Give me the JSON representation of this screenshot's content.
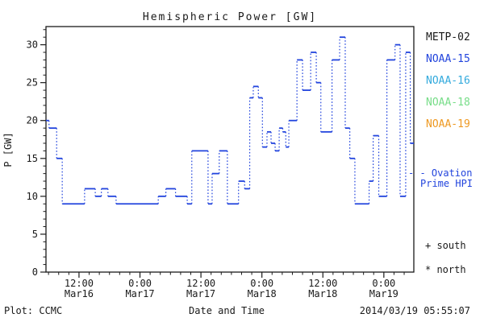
{
  "header": {
    "title": "Hemispheric Power [GW]"
  },
  "footer": {
    "plot_source": "Plot: CCMC",
    "timestamp": "2014/03/19 05:55:07"
  },
  "colors": {
    "axis": "#1a1a1a",
    "curve": "#2244dd",
    "metp02": "#1a1a1a",
    "noaa15": "#2244dd",
    "noaa16": "#33aadd",
    "noaa18": "#77dd88",
    "noaa19": "#ee9922"
  },
  "legend": {
    "satellites": [
      {
        "label": "METP-02",
        "color_key": "metp02"
      },
      {
        "label": "NOAA-15",
        "color_key": "noaa15"
      },
      {
        "label": "NOAA-16",
        "color_key": "noaa16"
      },
      {
        "label": "NOAA-18",
        "color_key": "noaa18"
      },
      {
        "label": "NOAA-19",
        "color_key": "noaa19"
      }
    ],
    "ovation_line1": "- - Ovation",
    "ovation_line2": "Prime HPI",
    "south_marker": "+ south",
    "north_marker": "* north"
  },
  "chart_data": {
    "type": "line",
    "style": "step-post; solid horizontal segments with dotted vertical connectors",
    "title": "Hemispheric Power [GW]",
    "xlabel": "Date and Time",
    "ylabel": "P [GW]",
    "ylim": [
      0,
      32.4
    ],
    "y_major_ticks": [
      0,
      5,
      10,
      15,
      20,
      25,
      30
    ],
    "y_minor_step": 1,
    "x_unit": "hours since 2014-03-16 00:00",
    "xlim_hours": [
      5.5,
      77.9
    ],
    "x_minor_step_hours": 2,
    "x_major_ticks": [
      {
        "hour": 12,
        "time": "12:00",
        "date": "Mar16"
      },
      {
        "hour": 24,
        "time": "0:00",
        "date": "Mar17"
      },
      {
        "hour": 36,
        "time": "12:00",
        "date": "Mar17"
      },
      {
        "hour": 48,
        "time": "0:00",
        "date": "Mar18"
      },
      {
        "hour": 60,
        "time": "12:00",
        "date": "Mar18"
      },
      {
        "hour": 72,
        "time": "0:00",
        "date": "Mar19"
      }
    ],
    "series": [
      {
        "name": "Ovation Prime HPI",
        "color_key": "noaa15",
        "end_hour": 77.9,
        "steps_hour_value": [
          [
            5.5,
            20
          ],
          [
            6.1,
            19
          ],
          [
            7.6,
            15
          ],
          [
            8.7,
            9
          ],
          [
            13.1,
            11
          ],
          [
            15.2,
            10
          ],
          [
            16.4,
            11
          ],
          [
            17.7,
            10
          ],
          [
            19.3,
            9
          ],
          [
            27.6,
            10
          ],
          [
            29.1,
            11
          ],
          [
            31.0,
            10
          ],
          [
            33.3,
            9
          ],
          [
            34.2,
            16
          ],
          [
            37.4,
            9
          ],
          [
            38.2,
            13
          ],
          [
            39.6,
            16
          ],
          [
            41.2,
            9
          ],
          [
            43.4,
            12
          ],
          [
            44.6,
            11
          ],
          [
            45.6,
            23
          ],
          [
            46.3,
            24.5
          ],
          [
            47.3,
            23
          ],
          [
            48.1,
            16.5
          ],
          [
            49.0,
            18.5
          ],
          [
            49.8,
            17
          ],
          [
            50.6,
            16
          ],
          [
            51.4,
            19
          ],
          [
            52.1,
            18.5
          ],
          [
            52.7,
            16.5
          ],
          [
            53.3,
            20
          ],
          [
            54.9,
            28
          ],
          [
            56.0,
            24
          ],
          [
            57.6,
            29
          ],
          [
            58.7,
            25
          ],
          [
            59.6,
            18.5
          ],
          [
            61.8,
            28
          ],
          [
            63.3,
            31
          ],
          [
            64.4,
            19
          ],
          [
            65.3,
            15
          ],
          [
            66.3,
            9
          ],
          [
            69.1,
            12
          ],
          [
            69.9,
            18
          ],
          [
            71.0,
            10
          ],
          [
            72.6,
            28
          ],
          [
            74.2,
            30
          ],
          [
            75.2,
            10
          ],
          [
            76.3,
            29
          ],
          [
            77.2,
            17
          ]
        ]
      }
    ]
  }
}
